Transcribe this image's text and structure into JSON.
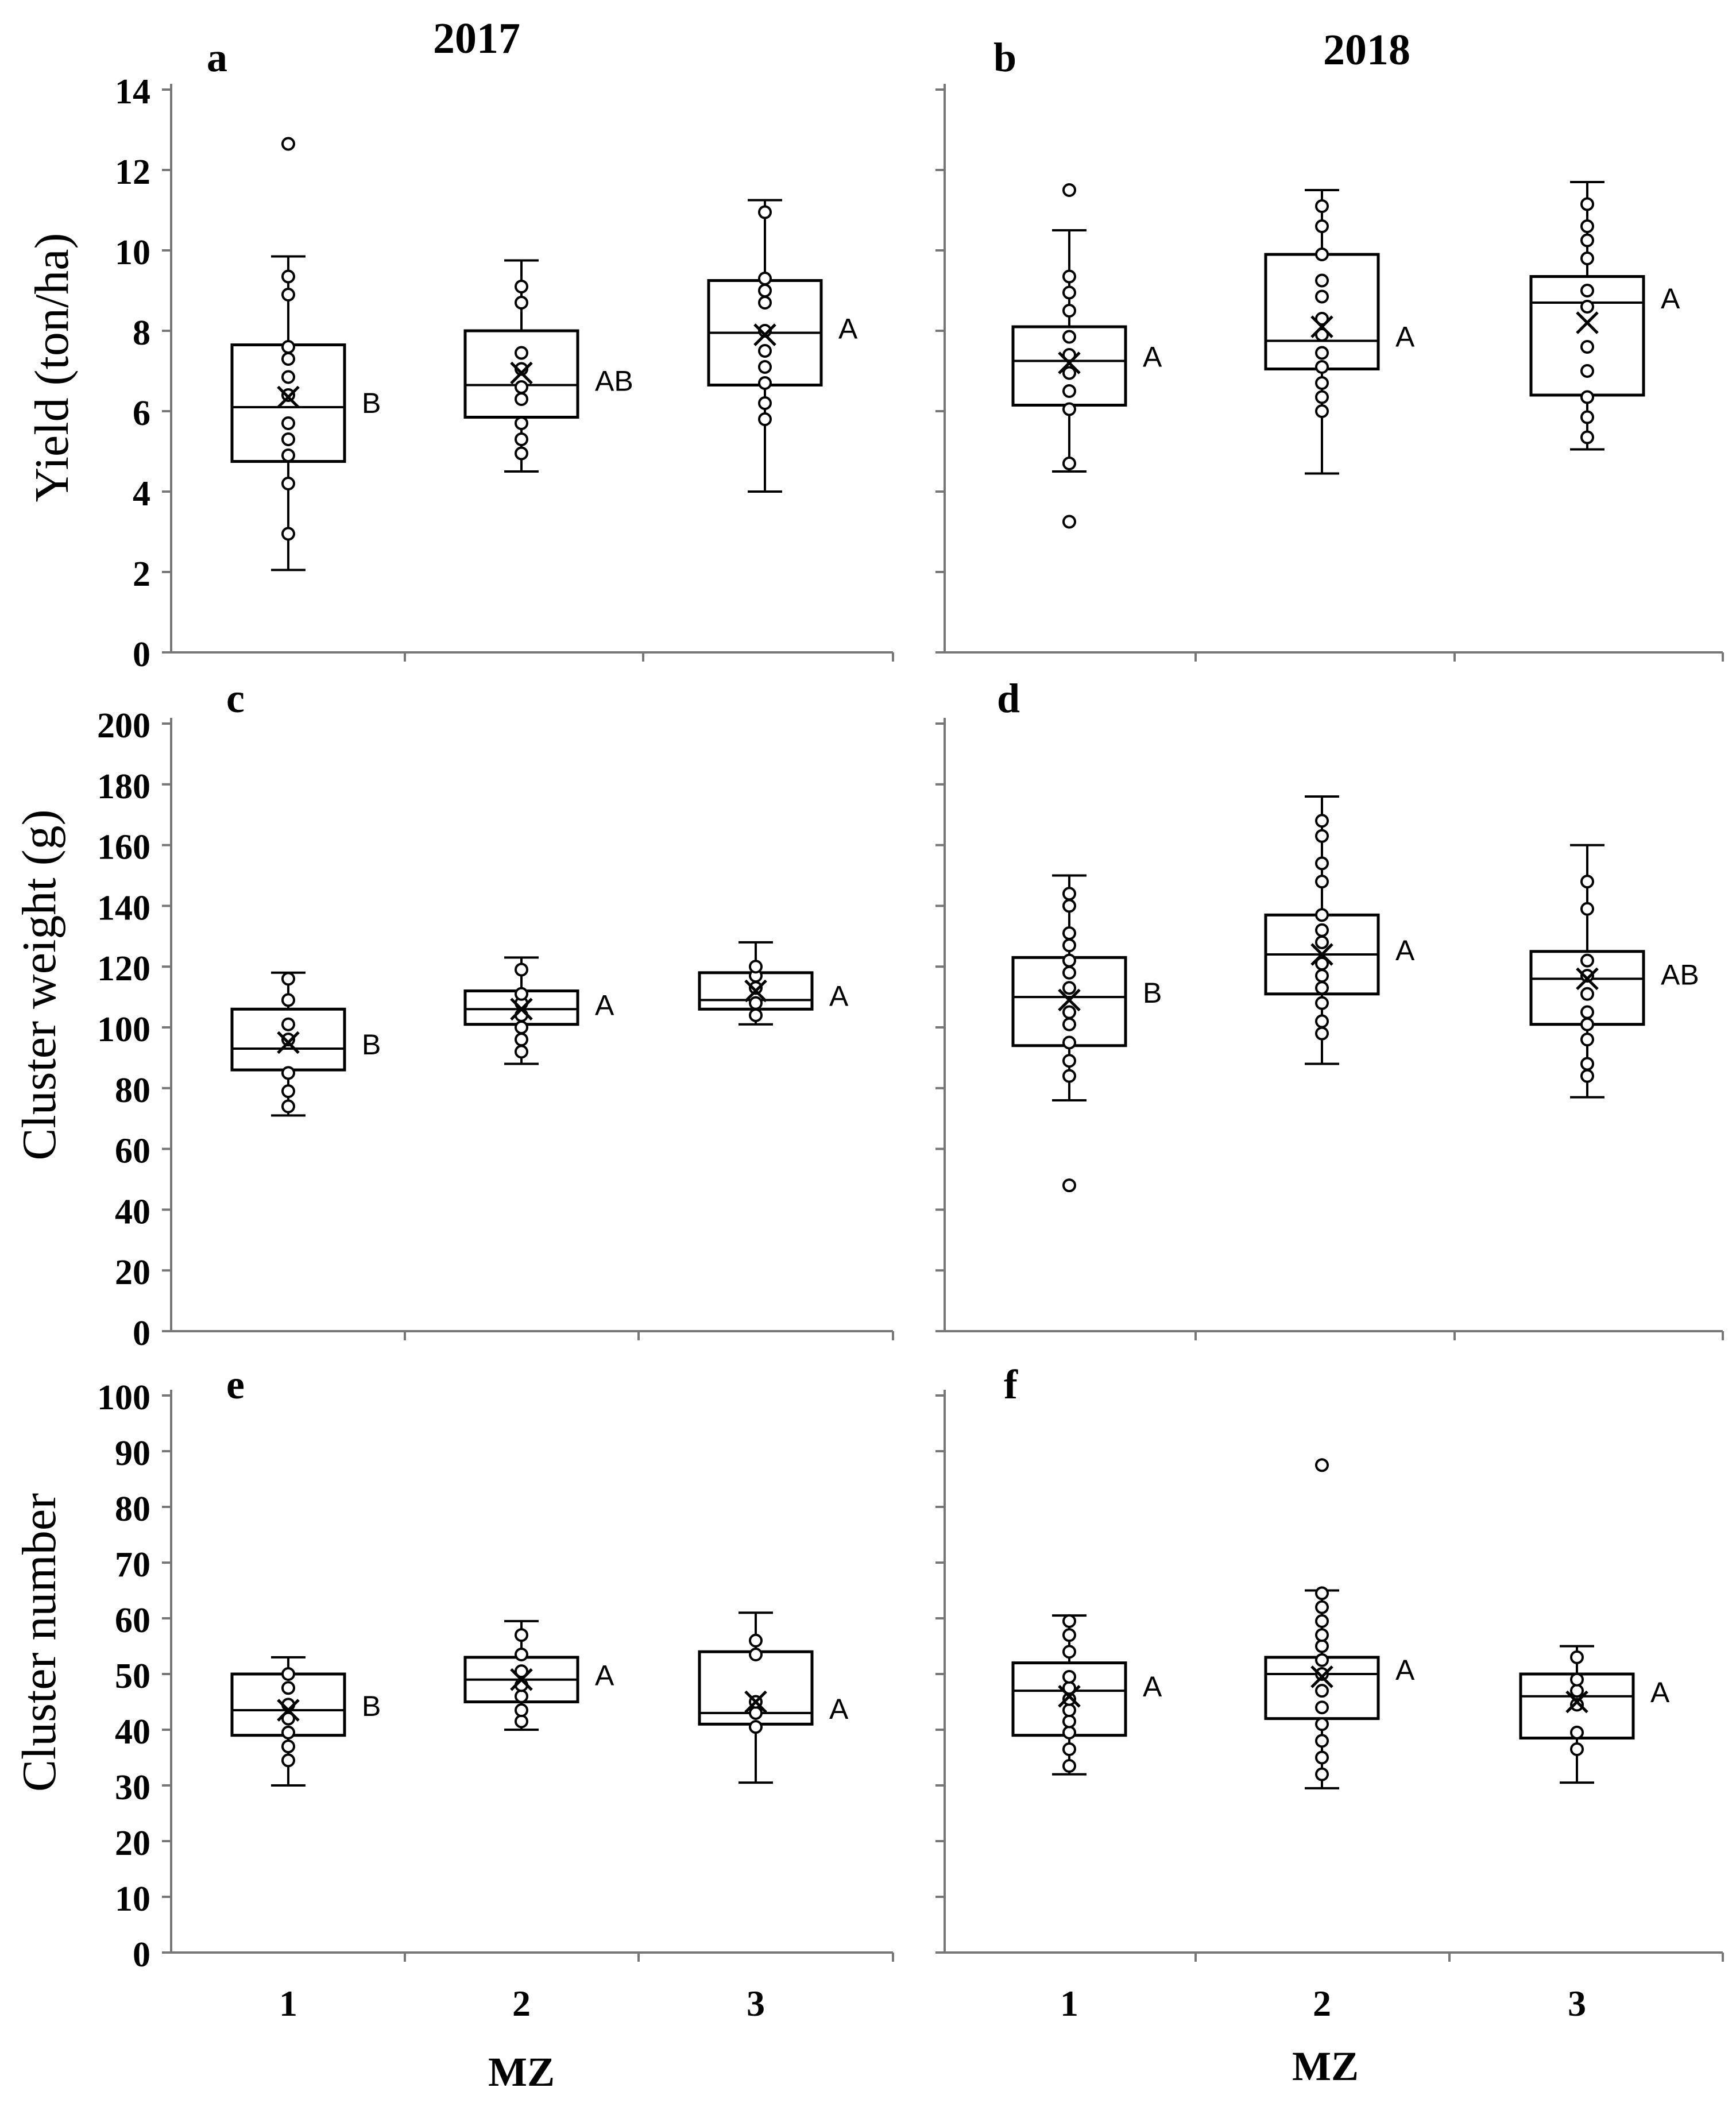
{
  "figure": {
    "column_titles": [
      "2017",
      "2018"
    ],
    "x_axis_label": "MZ",
    "row_ylabels": [
      "Yield (ton/ha)",
      "Cluster weight (g)",
      "Cluster number"
    ]
  },
  "chart_data": [
    {
      "panel": "a",
      "type": "box",
      "title": "2017",
      "ylabel": "Yield (ton/ha)",
      "xlabel": "",
      "ylim": [
        0,
        14
      ],
      "yticks": [
        0,
        2,
        4,
        6,
        8,
        10,
        12,
        14
      ],
      "show_tick_labels": true,
      "categories": [
        "1",
        "2",
        "3"
      ],
      "grid": false,
      "boxes": [
        {
          "category": "1",
          "min": 2.05,
          "q1": 4.75,
          "median": 6.1,
          "q3": 7.65,
          "max": 9.85,
          "mean": 6.35,
          "letter": "B",
          "points": [
            2.95,
            4.2,
            4.9,
            5.3,
            5.7,
            6.4,
            6.85,
            7.3,
            7.6,
            8.9,
            9.35
          ],
          "outliers": [
            12.65
          ]
        },
        {
          "category": "2",
          "min": 4.5,
          "q1": 5.85,
          "median": 6.65,
          "q3": 8.0,
          "max": 9.75,
          "mean": 6.95,
          "letter": "AB",
          "points": [
            4.95,
            5.3,
            5.7,
            6.3,
            6.6,
            7.05,
            7.45,
            8.7,
            9.1
          ],
          "outliers": []
        },
        {
          "category": "3",
          "min": 4.0,
          "q1": 6.65,
          "median": 7.95,
          "q3": 9.25,
          "max": 11.25,
          "mean": 7.9,
          "letter": "A",
          "points": [
            5.8,
            6.2,
            6.7,
            7.1,
            7.5,
            8.0,
            8.7,
            9.0,
            9.3,
            10.95
          ],
          "outliers": []
        }
      ]
    },
    {
      "panel": "b",
      "type": "box",
      "title": "2018",
      "ylabel": "",
      "xlabel": "",
      "ylim": [
        0,
        14
      ],
      "yticks": [
        0,
        2,
        4,
        6,
        8,
        10,
        12,
        14
      ],
      "show_tick_labels": false,
      "categories": [
        "1",
        "2",
        "3"
      ],
      "grid": false,
      "boxes": [
        {
          "category": "1",
          "min": 4.5,
          "q1": 6.15,
          "median": 7.25,
          "q3": 8.1,
          "max": 10.5,
          "mean": 7.2,
          "letter": "A",
          "points": [
            4.7,
            6.05,
            6.5,
            6.95,
            7.4,
            7.85,
            8.5,
            8.95,
            9.35
          ],
          "outliers": [
            3.25,
            11.5
          ]
        },
        {
          "category": "2",
          "min": 4.45,
          "q1": 7.05,
          "median": 7.75,
          "q3": 9.9,
          "max": 11.5,
          "mean": 8.1,
          "letter": "A",
          "points": [
            6.0,
            6.35,
            6.7,
            7.1,
            7.45,
            7.9,
            8.3,
            8.85,
            9.25,
            9.9,
            10.6,
            11.1
          ],
          "outliers": []
        },
        {
          "category": "3",
          "min": 5.05,
          "q1": 6.4,
          "median": 8.7,
          "q3": 9.35,
          "max": 11.7,
          "mean": 8.2,
          "letter": "A",
          "points": [
            5.35,
            5.85,
            6.35,
            7.0,
            7.6,
            8.6,
            9.0,
            9.8,
            10.25,
            10.6,
            11.15
          ],
          "outliers": []
        }
      ]
    },
    {
      "panel": "c",
      "type": "box",
      "title": "",
      "ylabel": "Cluster weight (g)",
      "xlabel": "",
      "ylim": [
        0,
        200
      ],
      "yticks": [
        0,
        20,
        40,
        60,
        80,
        100,
        120,
        140,
        160,
        180,
        200
      ],
      "show_tick_labels": true,
      "categories": [
        "1",
        "2",
        "3"
      ],
      "grid": false,
      "boxes": [
        {
          "category": "1",
          "min": 71,
          "q1": 86,
          "median": 93,
          "q3": 106,
          "max": 118,
          "mean": 95,
          "letter": "B",
          "points": [
            74,
            79,
            85,
            96,
            101,
            109,
            116
          ],
          "outliers": []
        },
        {
          "category": "2",
          "min": 88,
          "q1": 101,
          "median": 106,
          "q3": 112,
          "max": 123,
          "mean": 106,
          "letter": "A",
          "points": [
            92,
            96,
            100,
            104,
            108,
            111,
            119
          ],
          "outliers": []
        },
        {
          "category": "3",
          "min": 101,
          "q1": 106,
          "median": 109,
          "q3": 118,
          "max": 128,
          "mean": 112,
          "letter": "A",
          "points": [
            104,
            108,
            113,
            117,
            120
          ],
          "outliers": []
        }
      ]
    },
    {
      "panel": "d",
      "type": "box",
      "title": "",
      "ylabel": "",
      "xlabel": "",
      "ylim": [
        0,
        200
      ],
      "yticks": [
        0,
        20,
        40,
        60,
        80,
        100,
        120,
        140,
        160,
        180,
        200
      ],
      "show_tick_labels": false,
      "categories": [
        "1",
        "2",
        "3"
      ],
      "grid": false,
      "boxes": [
        {
          "category": "1",
          "min": 76,
          "q1": 94,
          "median": 110,
          "q3": 123,
          "max": 150,
          "mean": 109,
          "letter": "B",
          "points": [
            84,
            89,
            95,
            101,
            105,
            113,
            118,
            122,
            127,
            131,
            140,
            144
          ],
          "outliers": [
            48
          ]
        },
        {
          "category": "2",
          "min": 88,
          "q1": 111,
          "median": 124,
          "q3": 137,
          "max": 176,
          "mean": 124,
          "letter": "A",
          "points": [
            98,
            102,
            108,
            113,
            117,
            121,
            128,
            132,
            137,
            148,
            154,
            163,
            168
          ],
          "outliers": []
        },
        {
          "category": "3",
          "min": 77,
          "q1": 101,
          "median": 116,
          "q3": 125,
          "max": 160,
          "mean": 116,
          "letter": "AB",
          "points": [
            84,
            88,
            96,
            101,
            105,
            111,
            117,
            122,
            139,
            148
          ],
          "outliers": []
        }
      ]
    },
    {
      "panel": "e",
      "type": "box",
      "title": "",
      "ylabel": "Cluster number",
      "xlabel": "MZ",
      "ylim": [
        0,
        100
      ],
      "yticks": [
        0,
        10,
        20,
        30,
        40,
        50,
        60,
        70,
        80,
        90,
        100
      ],
      "show_tick_labels": true,
      "categories": [
        "1",
        "2",
        "3"
      ],
      "grid": false,
      "boxes": [
        {
          "category": "1",
          "min": 30,
          "q1": 39,
          "median": 43.5,
          "q3": 50,
          "max": 53,
          "mean": 43.5,
          "letter": "B",
          "points": [
            34.5,
            37,
            39.5,
            42,
            44.5,
            47.5,
            50
          ],
          "outliers": []
        },
        {
          "category": "2",
          "min": 40,
          "q1": 45,
          "median": 49,
          "q3": 53,
          "max": 59.5,
          "mean": 49,
          "letter": "A",
          "points": [
            41.5,
            43.5,
            46,
            48,
            50.5,
            53.5,
            57
          ],
          "outliers": []
        },
        {
          "category": "3",
          "min": 30.5,
          "q1": 41,
          "median": 43,
          "q3": 54,
          "max": 61,
          "mean": 45,
          "letter": "A",
          "points": [
            40.5,
            43,
            45,
            53.5,
            56
          ],
          "outliers": []
        }
      ]
    },
    {
      "panel": "f",
      "type": "box",
      "title": "",
      "ylabel": "",
      "xlabel": "MZ",
      "ylim": [
        0,
        100
      ],
      "yticks": [
        0,
        10,
        20,
        30,
        40,
        50,
        60,
        70,
        80,
        90,
        100
      ],
      "show_tick_labels": false,
      "categories": [
        "1",
        "2",
        "3"
      ],
      "grid": false,
      "boxes": [
        {
          "category": "1",
          "min": 32,
          "q1": 39,
          "median": 47,
          "q3": 52,
          "max": 60.5,
          "mean": 46,
          "letter": "A",
          "points": [
            33.5,
            36.5,
            39.5,
            41.5,
            43.5,
            45.5,
            47.5,
            49.5,
            54,
            57,
            59.5
          ],
          "outliers": []
        },
        {
          "category": "2",
          "min": 29.5,
          "q1": 42,
          "median": 50,
          "q3": 53,
          "max": 65,
          "mean": 49.5,
          "letter": "A",
          "points": [
            32,
            35,
            38,
            41,
            44,
            47,
            50,
            52.5,
            55,
            57,
            59.5,
            62,
            64.5
          ],
          "outliers": [
            87.5
          ]
        },
        {
          "category": "3",
          "min": 30.5,
          "q1": 38.5,
          "median": 46,
          "q3": 50,
          "max": 55,
          "mean": 45,
          "letter": "A",
          "points": [
            36.5,
            39.5,
            44.5,
            47,
            49,
            53
          ],
          "outliers": []
        }
      ]
    }
  ]
}
